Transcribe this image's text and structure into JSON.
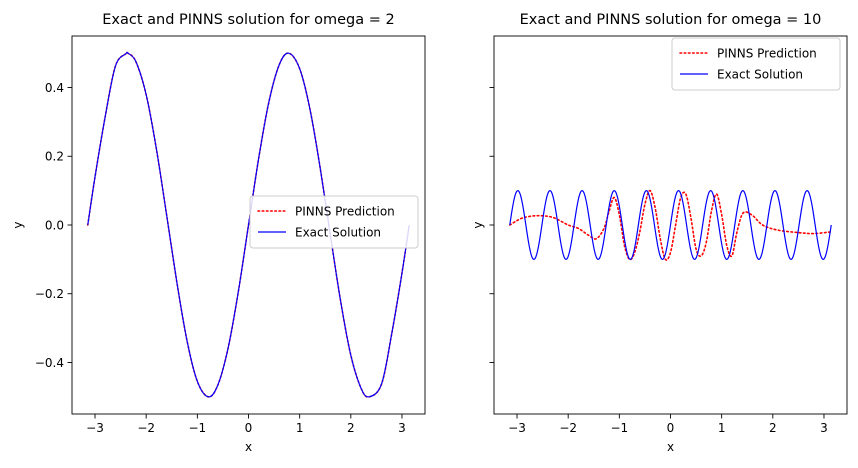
{
  "chart_data": [
    {
      "type": "line",
      "title": "Exact and PINNS solution for omega = 2",
      "xlabel": "x",
      "ylabel": "y",
      "xlim": [
        -3.45,
        3.45
      ],
      "ylim": [
        -0.55,
        0.55
      ],
      "x_ticks": [
        {
          "value": -3,
          "label": "−3"
        },
        {
          "value": -2,
          "label": "−2"
        },
        {
          "value": -1,
          "label": "−1"
        },
        {
          "value": 0,
          "label": "0"
        },
        {
          "value": 1,
          "label": "1"
        },
        {
          "value": 2,
          "label": "2"
        },
        {
          "value": 3,
          "label": "3"
        }
      ],
      "y_ticks": [
        {
          "value": -0.4,
          "label": "−0.4"
        },
        {
          "value": -0.2,
          "label": "−0.2"
        },
        {
          "value": 0.0,
          "label": "0.0"
        },
        {
          "value": 0.2,
          "label": "0.2"
        },
        {
          "value": 0.4,
          "label": "0.4"
        }
      ],
      "show_y_tick_labels": true,
      "legend_position": "center-right",
      "grid": false,
      "series": [
        {
          "name": "PINNS Prediction",
          "color": "#ff0000",
          "style": "dotted",
          "x": [
            -3.1416,
            -3.0,
            -2.8,
            -2.6,
            -2.4,
            -2.3562,
            -2.2,
            -2.0,
            -1.8,
            -1.6,
            -1.4,
            -1.2,
            -1.0,
            -0.7854,
            -0.6,
            -0.4,
            -0.2,
            0.0,
            0.2,
            0.4,
            0.6,
            0.7854,
            1.0,
            1.2,
            1.4,
            1.6,
            1.8,
            2.0,
            2.2,
            2.3562,
            2.6,
            2.8,
            3.0,
            3.1416
          ],
          "y": [
            0.0,
            0.14,
            0.316,
            0.463,
            0.498,
            0.5,
            0.475,
            0.379,
            0.221,
            0.029,
            -0.167,
            -0.338,
            -0.455,
            -0.5,
            -0.466,
            -0.359,
            -0.195,
            0.0,
            0.195,
            0.359,
            0.466,
            0.5,
            0.455,
            0.338,
            0.167,
            -0.029,
            -0.221,
            -0.379,
            -0.475,
            -0.5,
            -0.463,
            -0.316,
            -0.14,
            0.0
          ]
        },
        {
          "name": "Exact Solution",
          "color": "#0000ff",
          "style": "solid",
          "x": [
            -3.1416,
            -3.0,
            -2.8,
            -2.6,
            -2.4,
            -2.3562,
            -2.2,
            -2.0,
            -1.8,
            -1.6,
            -1.4,
            -1.2,
            -1.0,
            -0.7854,
            -0.6,
            -0.4,
            -0.2,
            0.0,
            0.2,
            0.4,
            0.6,
            0.7854,
            1.0,
            1.2,
            1.4,
            1.6,
            1.8,
            2.0,
            2.2,
            2.3562,
            2.6,
            2.8,
            3.0,
            3.1416
          ],
          "y": [
            0.0,
            0.14,
            0.316,
            0.463,
            0.498,
            0.5,
            0.475,
            0.379,
            0.221,
            0.029,
            -0.167,
            -0.338,
            -0.455,
            -0.5,
            -0.466,
            -0.359,
            -0.195,
            0.0,
            0.195,
            0.359,
            0.466,
            0.5,
            0.455,
            0.338,
            0.167,
            -0.029,
            -0.221,
            -0.379,
            -0.475,
            -0.5,
            -0.463,
            -0.316,
            -0.14,
            0.0
          ]
        }
      ]
    },
    {
      "type": "line",
      "title": "Exact and PINNS solution for omega = 10",
      "xlabel": "x",
      "ylabel": "y",
      "xlim": [
        -3.45,
        3.45
      ],
      "ylim": [
        -0.55,
        0.55
      ],
      "x_ticks": [
        {
          "value": -3,
          "label": "−3"
        },
        {
          "value": -2,
          "label": "−2"
        },
        {
          "value": -1,
          "label": "−1"
        },
        {
          "value": 0,
          "label": "0"
        },
        {
          "value": 1,
          "label": "1"
        },
        {
          "value": 2,
          "label": "2"
        },
        {
          "value": 3,
          "label": "3"
        }
      ],
      "y_ticks": [
        {
          "value": -0.4,
          "label": ""
        },
        {
          "value": -0.2,
          "label": ""
        },
        {
          "value": 0.0,
          "label": ""
        },
        {
          "value": 0.2,
          "label": ""
        },
        {
          "value": 0.4,
          "label": ""
        }
      ],
      "show_y_tick_labels": false,
      "legend_position": "upper-right",
      "grid": false,
      "series": [
        {
          "name": "PINNS Prediction",
          "color": "#ff0000",
          "style": "dotted",
          "x": [
            -3.14,
            -2.9,
            -2.6,
            -2.3,
            -2.0,
            -1.8,
            -1.6,
            -1.45,
            -1.3,
            -1.2,
            -1.1,
            -1.0,
            -0.9,
            -0.8,
            -0.7,
            -0.6,
            -0.5,
            -0.4,
            -0.3,
            -0.2,
            -0.1,
            0.0,
            0.1,
            0.2,
            0.3,
            0.4,
            0.5,
            0.6,
            0.7,
            0.8,
            0.9,
            1.0,
            1.1,
            1.2,
            1.3,
            1.42,
            1.6,
            1.8,
            2.1,
            2.5,
            2.8,
            3.14
          ],
          "y": [
            0.0,
            0.02,
            0.027,
            0.022,
            0.0,
            -0.01,
            -0.03,
            -0.04,
            -0.01,
            0.04,
            0.08,
            0.03,
            -0.06,
            -0.1,
            -0.08,
            -0.02,
            0.06,
            0.1,
            0.05,
            -0.04,
            -0.1,
            -0.08,
            0.0,
            0.08,
            0.09,
            0.02,
            -0.07,
            -0.09,
            -0.05,
            0.04,
            0.09,
            0.03,
            -0.06,
            -0.09,
            -0.02,
            0.035,
            0.028,
            0.0,
            -0.015,
            -0.022,
            -0.025,
            -0.02
          ]
        },
        {
          "name": "Exact Solution",
          "color": "#0000ff",
          "style": "solid",
          "function": "0.1*sin(10*x)",
          "x_range": [
            -3.1416,
            3.1416
          ]
        }
      ]
    }
  ]
}
